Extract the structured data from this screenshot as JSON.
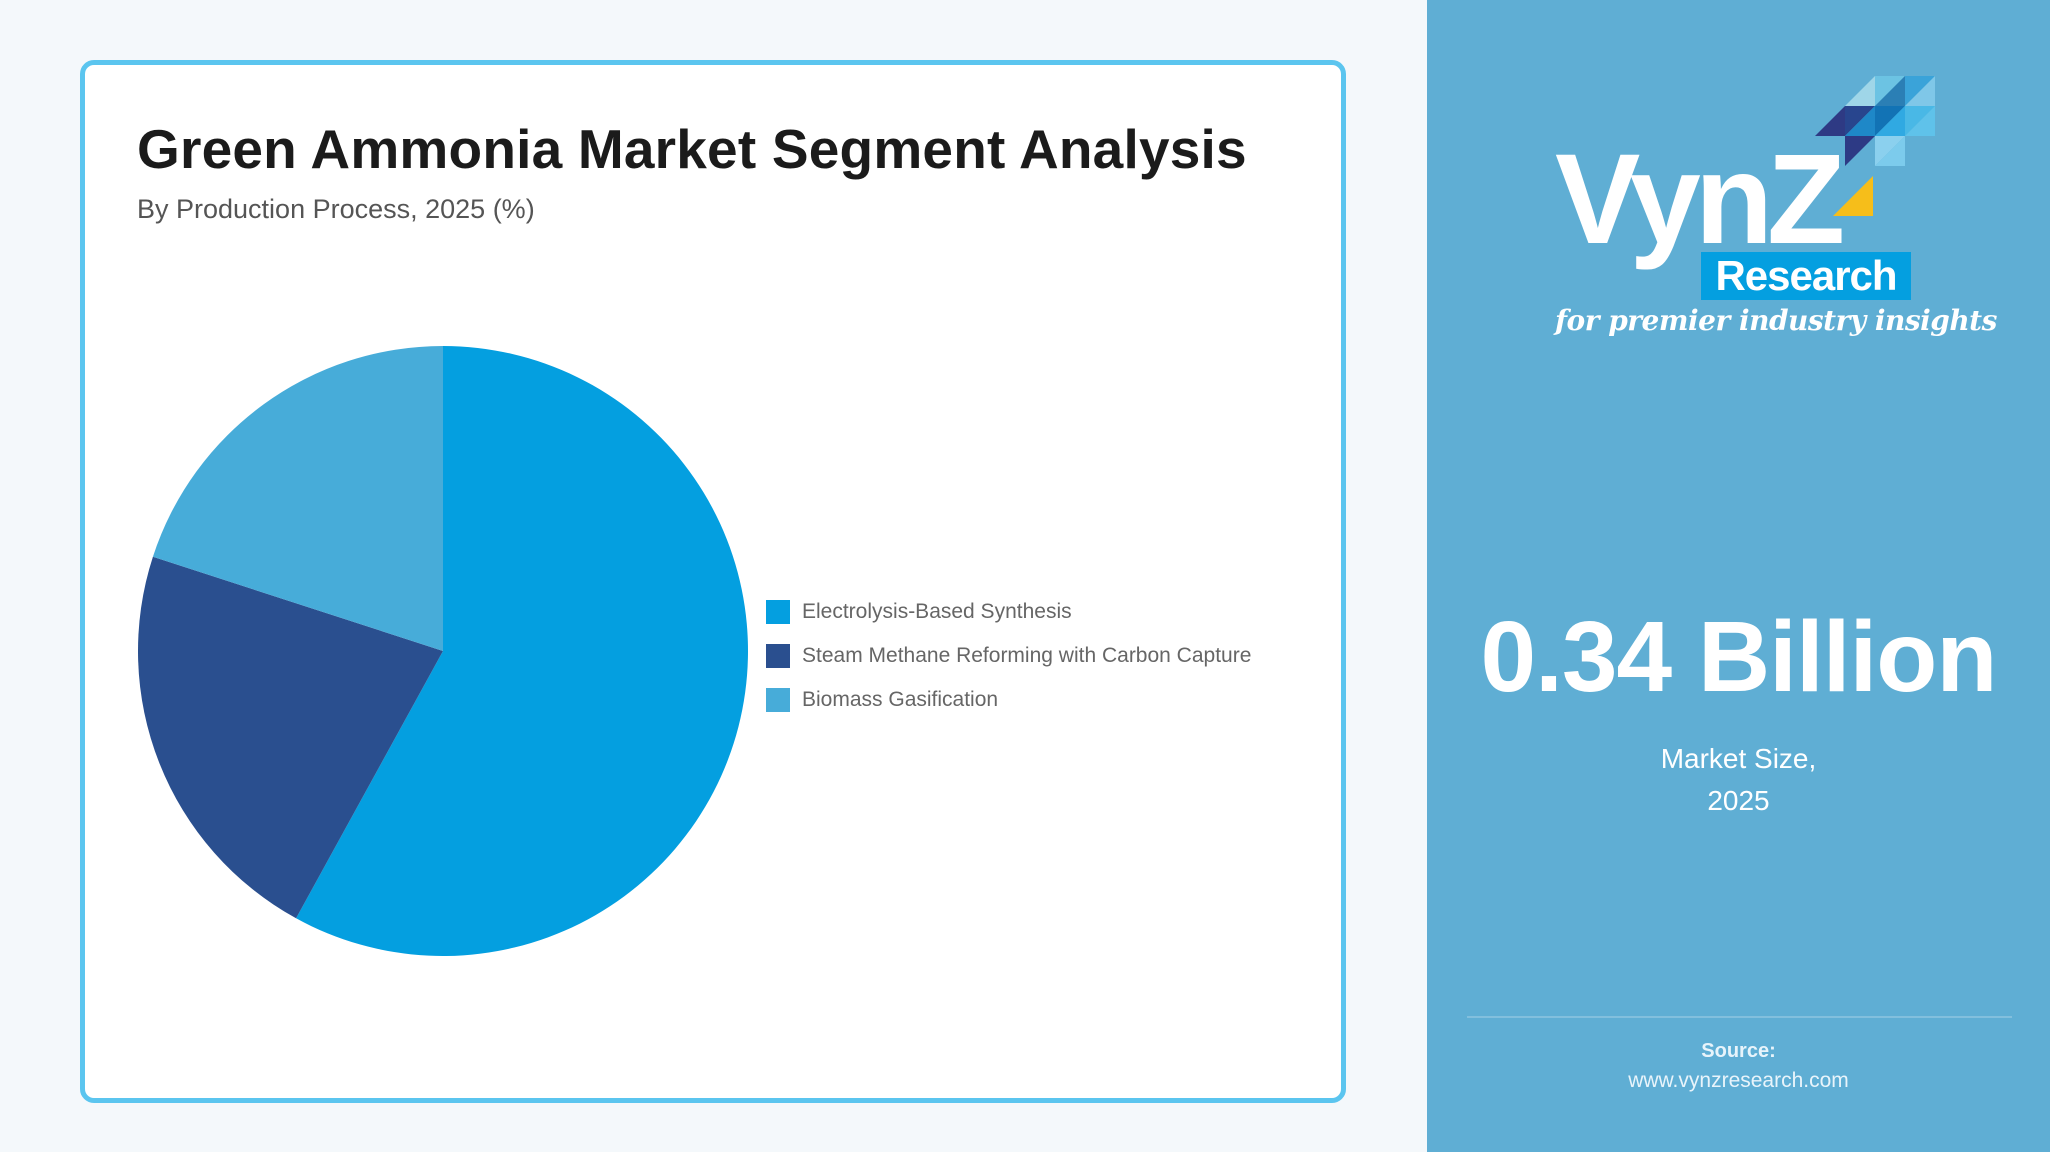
{
  "card": {
    "title": "Green Ammonia Market Segment Analysis",
    "subtitle": "By Production Process, 2025 (%)"
  },
  "legend": [
    {
      "label": "Electrolysis-Based Synthesis",
      "color": "#049fe0"
    },
    {
      "label": "Steam Methane Reforming with Carbon Capture",
      "color": "#2a4f8f"
    },
    {
      "label": "Biomass Gasification",
      "color": "#47acd9"
    }
  ],
  "sidebar": {
    "logo": {
      "wordmark": "VynZ",
      "research": "Research",
      "tagline": "for premier industry insights"
    },
    "market_value": "0.34 Billion",
    "market_label_line1": "Market Size,",
    "market_label_line2": "2025",
    "source_label": "Source:",
    "source_url": "www.vynzresearch.com"
  },
  "colors": {
    "page_bg": "#f4f8fb",
    "card_border": "#5bc5ef",
    "sidebar_bg": "#5faed4"
  },
  "chart_data": {
    "type": "pie",
    "title": "Green Ammonia Market Segment Analysis",
    "subtitle": "By Production Process, 2025 (%)",
    "categories": [
      "Electrolysis-Based Synthesis",
      "Steam Methane Reforming with Carbon Capture",
      "Biomass Gasification"
    ],
    "values": [
      58,
      22,
      20
    ],
    "colors": [
      "#049fe0",
      "#2a4f8f",
      "#47acd9"
    ],
    "start_angle_deg": 0,
    "direction": "clockwise",
    "legend_position": "right",
    "data_labels": false
  }
}
